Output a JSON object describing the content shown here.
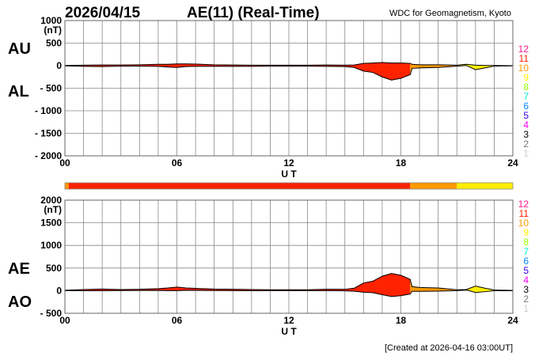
{
  "header": {
    "date": "2026/04/15",
    "title": "AE(11) (Real-Time)",
    "source": "WDC for Geomagnetism, Kyoto",
    "created": "[Created at 2026-04-16 03:00UT]"
  },
  "chart_data": [
    {
      "type": "area",
      "panel": "AU/AL",
      "labels": [
        "AU",
        "AL"
      ],
      "unit": "(nT)",
      "xlabel": "U T",
      "ylim": [
        -2000,
        1000
      ],
      "yticks": [
        "1000",
        "500",
        "0",
        "- 500",
        "- 1000",
        "- 1500",
        "- 2000"
      ],
      "ytick_values": [
        1000,
        500,
        0,
        -500,
        -1000,
        -1500,
        -2000
      ],
      "xlim": [
        0,
        24
      ],
      "xticks": [
        "00",
        "06",
        "12",
        "18",
        "24"
      ],
      "grid": true,
      "hours": [
        0,
        1,
        2,
        3,
        4,
        5,
        5.5,
        6,
        6.5,
        7,
        8,
        9,
        10,
        11,
        12,
        13,
        14,
        15,
        15.5,
        16,
        16.5,
        17,
        17.5,
        18,
        18.5,
        18.6,
        19,
        20,
        21,
        21.5,
        22,
        22.5,
        23,
        24
      ],
      "AU": [
        5,
        10,
        15,
        15,
        20,
        30,
        30,
        40,
        40,
        35,
        20,
        15,
        10,
        10,
        10,
        10,
        15,
        10,
        15,
        50,
        60,
        70,
        60,
        60,
        50,
        30,
        20,
        20,
        10,
        30,
        10,
        5,
        5,
        0
      ],
      "AL": [
        -5,
        -15,
        -20,
        -10,
        -10,
        -15,
        -30,
        -40,
        -20,
        -15,
        -15,
        -15,
        -15,
        -10,
        -10,
        -10,
        -15,
        -20,
        -40,
        -120,
        -150,
        -250,
        -320,
        -280,
        -200,
        -60,
        -50,
        -40,
        -10,
        5,
        -90,
        -50,
        -10,
        -5
      ]
    },
    {
      "type": "area",
      "panel": "AE/AO",
      "labels": [
        "AE",
        "AO"
      ],
      "unit": "(nT)",
      "xlabel": "U T",
      "ylim": [
        -500,
        2000
      ],
      "yticks": [
        "2000",
        "1500",
        "1000",
        "500",
        "0",
        "- 500"
      ],
      "ytick_values": [
        2000,
        1500,
        1000,
        500,
        0,
        -500
      ],
      "xlim": [
        0,
        24
      ],
      "xticks": [
        "00",
        "06",
        "12",
        "18",
        "24"
      ],
      "grid": true
    }
  ],
  "stations": {
    "segments": [
      {
        "from": 0,
        "to": 0.2,
        "count": 10
      },
      {
        "from": 0.2,
        "to": 18.5,
        "count": 11
      },
      {
        "from": 18.5,
        "to": 21,
        "count": 10
      },
      {
        "from": 21,
        "to": 24,
        "count": 9
      }
    ],
    "legend": [
      {
        "label": "12",
        "color": "#ff1a8c"
      },
      {
        "label": "11",
        "color": "#ff2200"
      },
      {
        "label": "10",
        "color": "#ff9900"
      },
      {
        "label": "9",
        "color": "#ffee00"
      },
      {
        "label": "8",
        "color": "#99ff00"
      },
      {
        "label": "7",
        "color": "#00eecc"
      },
      {
        "label": "6",
        "color": "#0088ff"
      },
      {
        "label": "5",
        "color": "#3300ee"
      },
      {
        "label": "4",
        "color": "#ff00ff"
      },
      {
        "label": "3",
        "color": "#000000"
      },
      {
        "label": "2",
        "color": "#777777"
      },
      {
        "label": "1",
        "color": "#cccccc"
      }
    ]
  }
}
